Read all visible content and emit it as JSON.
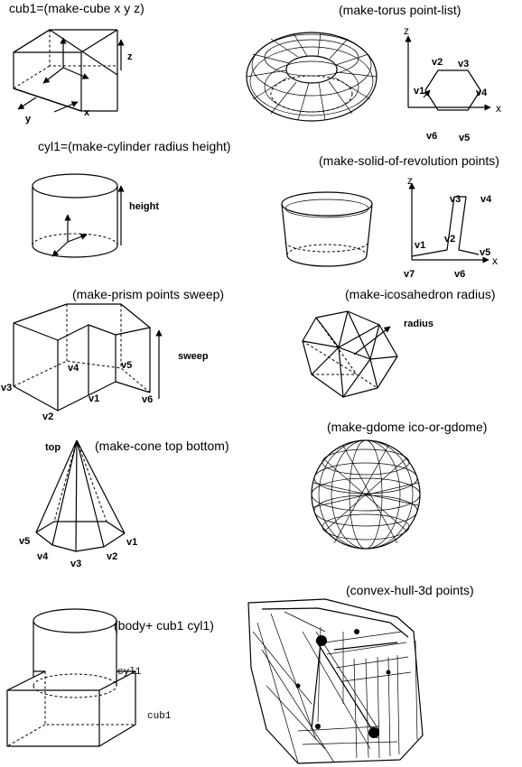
{
  "cube": {
    "title": "cub1=(make-cube x y z)",
    "x": "x",
    "y": "y",
    "z": "z"
  },
  "torus": {
    "title": "(make-torus point-list)",
    "z": "z",
    "x": "x",
    "v1": "v1",
    "v2": "v2",
    "v3": "v3",
    "v4": "v4",
    "v5": "v5",
    "v6": "v6"
  },
  "cylinder": {
    "title": "cyl1=(make-cylinder radius height)",
    "height": "height"
  },
  "revolution": {
    "title": "(make-solid-of-revolution points)",
    "z": "z",
    "x": "x",
    "v1": "v1",
    "v2": "v2",
    "v3": "v3",
    "v4": "v4",
    "v5": "v5",
    "v6": "v6",
    "v7": "v7"
  },
  "prism": {
    "title": "(make-prism points sweep)",
    "sweep": "sweep",
    "v1": "v1",
    "v2": "v2",
    "v3": "v3",
    "v4": "v4",
    "v5": "v5",
    "v6": "v6"
  },
  "icosahedron": {
    "title": "(make-icosahedron radius)",
    "radius": "radius"
  },
  "cone": {
    "title": "(make-cone top bottom)",
    "top": "top",
    "v1": "v1",
    "v2": "v2",
    "v3": "v3",
    "v4": "v4",
    "v5": "v5"
  },
  "gdome": {
    "title": "(make-gdome ico-or-gdome)"
  },
  "body": {
    "title": "(body+ cub1 cyl1)",
    "cyl1": "cyl1",
    "cub1": "cub1"
  },
  "hull": {
    "title": "(convex-hull-3d points)"
  }
}
